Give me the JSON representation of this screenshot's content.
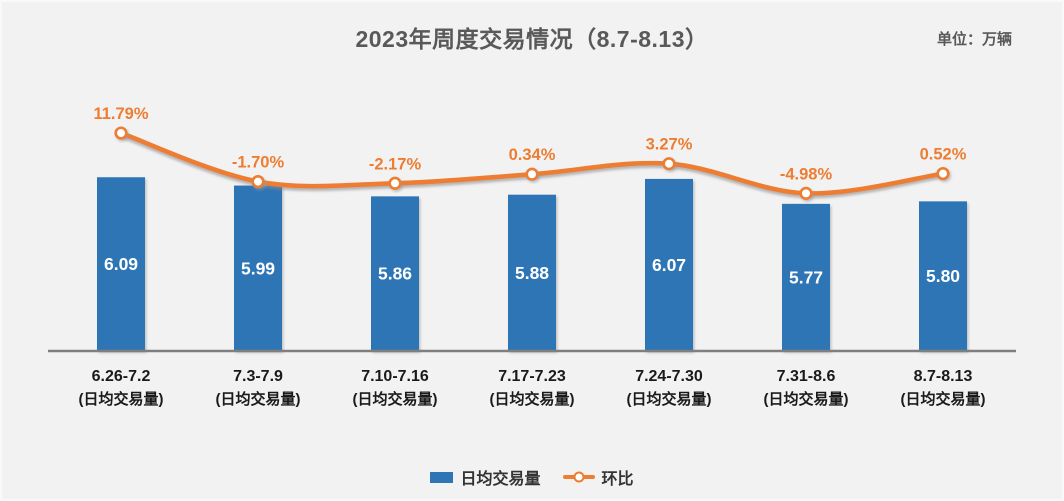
{
  "header": {
    "title": "2023年周度交易情况（8.7-8.13）",
    "unit_label": "单位：万辆"
  },
  "chart_data": {
    "type": "bar+line",
    "title": "2023年周度交易情况（8.7-8.13）",
    "unit": "万辆",
    "categories": [
      "6.26-7.2",
      "7.3-7.9",
      "7.10-7.16",
      "7.17-7.23",
      "7.24-7.30",
      "7.31-8.6",
      "8.7-8.13"
    ],
    "category_sublabel": "(日均交易量)",
    "series": [
      {
        "name": "日均交易量",
        "type": "bar",
        "values": [
          6.09,
          5.99,
          5.86,
          5.88,
          6.07,
          5.77,
          5.8
        ],
        "color": "#2F75B6",
        "value_label_color": "#FFFFFF",
        "axis": "primary",
        "axis_range": [
          4.0,
          7.5
        ]
      },
      {
        "name": "环比",
        "type": "line",
        "values": [
          11.79,
          -1.7,
          -2.17,
          0.34,
          3.27,
          -4.98,
          0.52
        ],
        "value_suffix": "%",
        "color": "#ED7D31",
        "marker": "white-circle-orange-ring",
        "axis": "secondary",
        "axis_range": [
          -48.8,
          32.1
        ]
      }
    ],
    "legend": {
      "position": "bottom-center",
      "items": [
        {
          "label": "日均交易量",
          "swatch": "bar"
        },
        {
          "label": "环比",
          "swatch": "line-marker"
        }
      ]
    },
    "grid": false,
    "background": "#F2F2F2",
    "axis_line_color": "#7F7F7F",
    "title_color": "#595959",
    "xtick_color": "#1A1A1A"
  }
}
